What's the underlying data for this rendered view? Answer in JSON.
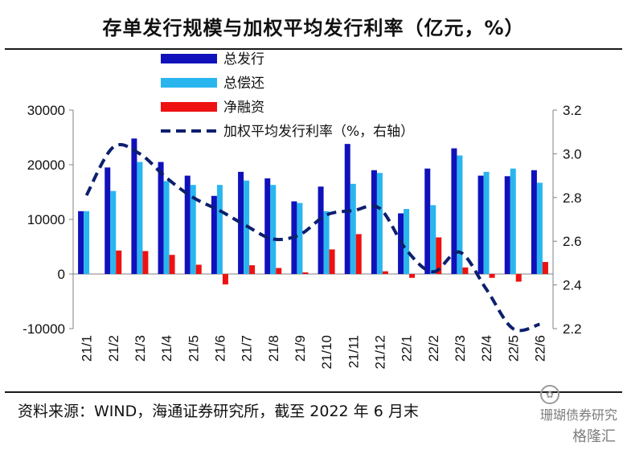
{
  "header": {
    "title": "存单发行规模与加权平均发行利率（亿元，%）"
  },
  "footer": {
    "source": "资料来源：WIND，海通证券研究所，截至 2022 年 6 月末"
  },
  "watermark": {
    "line1": "珊瑚债券研究",
    "line2": "格隆汇",
    "icon": "wechat-icon"
  },
  "colors": {
    "total_issue": "#1111bb",
    "total_repay": "#29b6ef",
    "net_financing": "#ee1111",
    "rate_line": "#0c1f6e"
  },
  "chart_data": {
    "type": "bar",
    "categories": [
      "21/1",
      "21/2",
      "21/3",
      "21/4",
      "21/5",
      "21/6",
      "21/7",
      "21/8",
      "21/9",
      "21/10",
      "21/11",
      "21/12",
      "22/1",
      "22/2",
      "22/3",
      "22/4",
      "22/5",
      "22/6"
    ],
    "series": [
      {
        "name": "总发行",
        "type": "bar",
        "axis": "left",
        "values": [
          11500,
          19500,
          24800,
          20500,
          18000,
          14300,
          18700,
          17500,
          13300,
          16000,
          23800,
          19000,
          11100,
          19300,
          23000,
          18000,
          17900,
          19000
        ]
      },
      {
        "name": "总偿还",
        "type": "bar",
        "axis": "left",
        "values": [
          11500,
          15200,
          20500,
          17000,
          16300,
          16300,
          17100,
          16300,
          13000,
          11500,
          16500,
          18500,
          11900,
          12600,
          21700,
          18700,
          19300,
          16700
        ]
      },
      {
        "name": "净融资",
        "type": "bar",
        "axis": "left",
        "values": [
          0,
          4300,
          4200,
          3500,
          1700,
          -1900,
          1600,
          1100,
          300,
          4500,
          7300,
          500,
          -700,
          6700,
          1200,
          -700,
          -1400,
          2200
        ]
      },
      {
        "name": "加权平均发行利率（%，右轴）",
        "type": "line",
        "axis": "right",
        "values": [
          2.81,
          3.03,
          3.0,
          2.89,
          2.8,
          2.74,
          2.67,
          2.61,
          2.63,
          2.72,
          2.74,
          2.75,
          2.56,
          2.46,
          2.55,
          2.38,
          2.2,
          2.22
        ]
      }
    ],
    "y_left": {
      "min": -10000,
      "max": 30000,
      "ticks": [
        "-10000",
        "0",
        "10000",
        "20000",
        "30000"
      ]
    },
    "y_right": {
      "min": 2.2,
      "max": 3.2,
      "ticks": [
        "2.2",
        "2.4",
        "2.6",
        "2.8",
        "3.0",
        "3.2"
      ]
    },
    "legend_position": "top-center",
    "grid": false
  }
}
